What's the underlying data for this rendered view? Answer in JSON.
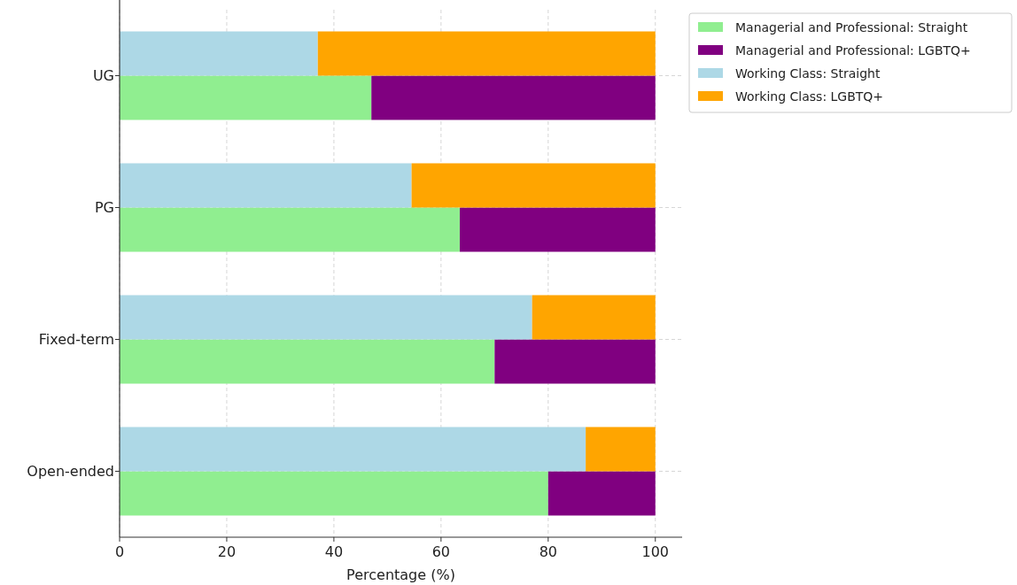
{
  "chart_data": {
    "type": "bar",
    "orientation": "horizontal",
    "xlabel": "Percentage (%)",
    "categories": [
      "UG",
      "PG",
      "Fixed-term",
      "Open-ended"
    ],
    "series": [
      {
        "name": "Managerial and Professional: Straight",
        "color": "#90ee90",
        "values": [
          47,
          63.5,
          70,
          80
        ],
        "base": [
          0,
          0,
          0,
          0
        ]
      },
      {
        "name": "Managerial and Professional: LGBTQ+",
        "color": "#800080",
        "values": [
          53,
          36.5,
          30,
          20
        ],
        "base": [
          47,
          63.5,
          70,
          80
        ]
      },
      {
        "name": "Working Class: Straight",
        "color": "#add8e6",
        "values": [
          37,
          54.5,
          77,
          87
        ],
        "base": [
          0,
          0,
          0,
          0
        ]
      },
      {
        "name": "Working Class: LGBTQ+",
        "color": "#ffa500",
        "values": [
          63,
          45.5,
          23,
          13
        ],
        "base": [
          37,
          54.5,
          77,
          87
        ]
      }
    ],
    "xlim": [
      0,
      105
    ],
    "xticks": [
      0,
      20,
      40,
      60,
      80,
      100
    ],
    "grid": true,
    "legend": "top right"
  }
}
